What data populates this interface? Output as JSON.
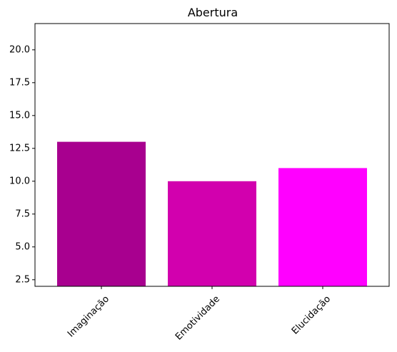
{
  "chart_data": {
    "type": "bar",
    "title": "Abertura",
    "xlabel": "",
    "ylabel": "",
    "categories": [
      "Imaginação",
      "Emotividade",
      "Elucidação"
    ],
    "values": [
      13.0,
      10.0,
      11.0
    ],
    "colors": [
      "#a8008f",
      "#d200ae",
      "#ff00ff"
    ],
    "ylim": [
      2.0,
      22.0
    ],
    "yticks": [
      2.5,
      5.0,
      7.5,
      10.0,
      12.5,
      15.0,
      17.5,
      20.0
    ],
    "ytick_labels": [
      "2.5",
      "5.0",
      "7.5",
      "10.0",
      "12.5",
      "15.0",
      "17.5",
      "20.0"
    ],
    "grid": false,
    "legend": "none"
  }
}
